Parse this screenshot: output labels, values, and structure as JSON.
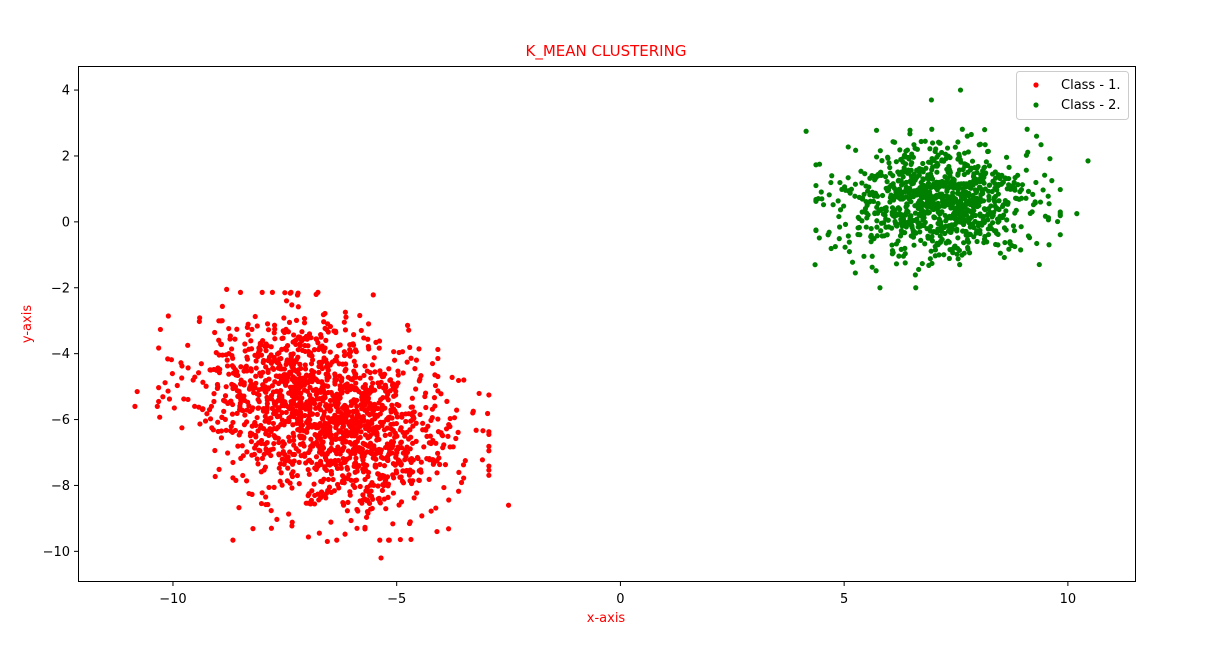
{
  "chart_data": {
    "type": "scatter",
    "title": "K_MEAN CLUSTERING",
    "xlabel": "x-axis",
    "ylabel": "y-axis",
    "xlim": [
      -12.1,
      11.5
    ],
    "ylim": [
      -10.9,
      4.7
    ],
    "xticks": [
      -10,
      -5,
      0,
      5,
      10
    ],
    "xtick_labels": [
      "−10",
      "−5",
      "0",
      "5",
      "10"
    ],
    "yticks": [
      4,
      2,
      0,
      -2,
      -4,
      -6,
      -8,
      -10
    ],
    "ytick_labels": [
      "4",
      "2",
      "0",
      "−2",
      "−4",
      "−6",
      "−8",
      "−10"
    ],
    "grid": false,
    "legend_position": "top-right",
    "title_color": "#ff0000",
    "label_color": "#ff0000",
    "series": [
      {
        "name": "Class - 1.",
        "color": "#ff0000",
        "clusters": [
          {
            "center": [
              -7.2,
              -5.0
            ],
            "spread": [
              1.2,
              1.1
            ],
            "count": 900
          },
          {
            "center": [
              -5.8,
              -6.8
            ],
            "spread": [
              1.1,
              1.1
            ],
            "count": 800
          }
        ],
        "points": [
          [
            -10.8,
            -5.15
          ],
          [
            -10.85,
            -5.6
          ],
          [
            -10.35,
            -5.6
          ],
          [
            -9.8,
            -6.25
          ],
          [
            -8.8,
            -2.05
          ],
          [
            -7.5,
            -2.15
          ],
          [
            -6.8,
            -2.2
          ],
          [
            -5.35,
            -10.2
          ],
          [
            -6.55,
            -9.7
          ],
          [
            -2.5,
            -8.6
          ],
          [
            -4.1,
            -9.4
          ],
          [
            -3.3,
            -5.8
          ],
          [
            -3.5,
            -4.8
          ],
          [
            -4.2,
            -4.3
          ],
          [
            -7.8,
            -9.3
          ],
          [
            -8.9,
            -3.0
          ]
        ]
      },
      {
        "name": "Class - 2.",
        "color": "#008000",
        "clusters": [
          {
            "center": [
              7.1,
              0.6
            ],
            "spread": [
              1.05,
              0.85
            ],
            "count": 1000
          }
        ],
        "points": [
          [
            4.15,
            2.75
          ],
          [
            4.35,
            -1.3
          ],
          [
            7.6,
            4.0
          ],
          [
            6.95,
            3.7
          ],
          [
            10.45,
            1.85
          ],
          [
            10.2,
            0.25
          ],
          [
            6.6,
            -2.0
          ],
          [
            5.8,
            -2.0
          ],
          [
            9.3,
            2.6
          ],
          [
            5.25,
            -1.55
          ],
          [
            4.45,
            1.75
          ]
        ]
      }
    ]
  }
}
